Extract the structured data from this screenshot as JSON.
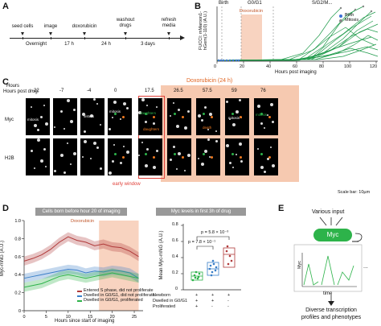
{
  "panels": {
    "A": "A",
    "B": "B",
    "C": "C",
    "D": "D",
    "E": "E"
  },
  "timeline": {
    "steps": [
      "seed cells",
      "image",
      "doxorubicin",
      "washout drugs",
      "refresh media"
    ],
    "intervals": [
      "Overnight",
      "17 h",
      "24 h",
      "3 days"
    ]
  },
  "panel_b": {
    "phases": [
      "Birth",
      "G0/G1",
      "S/G2/M..."
    ],
    "drug_label": "Doxorubicin",
    "ylabel": "FUCCI: mMaroon1-hGem(1-110) (A.U.)",
    "xlabel": "Hours post imaging",
    "xticks": [
      "0",
      "20",
      "40",
      "60",
      "80",
      "100",
      "120"
    ],
    "legend": [
      {
        "name": "Birth",
        "color": "#3b6fd6"
      },
      {
        "name": "Mitosis",
        "color": "#888888"
      }
    ]
  },
  "panel_c": {
    "hours_label": "Hours post drug:",
    "drug_title": "Doxorubicin (24 h)",
    "times": [
      "-22",
      "-7",
      "-4",
      "0",
      "17.5",
      "26.5",
      "57.5",
      "59",
      "76"
    ],
    "rows": [
      "Myc",
      "H2B"
    ],
    "early_window": "early window",
    "scale_bar": "Scale bar: 10µm",
    "annotations": {
      "mitosis": "mitosis",
      "sisters": "sisters",
      "daughters": "daughters",
      "death": "death"
    }
  },
  "panel_d": {
    "title": "Cells born before hour 20 of imaging",
    "drug_label": "Doxorubicin",
    "ylabel": "Myc-mNG (A.U.)",
    "xlabel": "Hours since start of imaging",
    "xticks": [
      "0",
      "5",
      "10",
      "15",
      "20",
      "25"
    ],
    "yticks": [
      "0",
      "0.2",
      "0.4",
      "0.6",
      "0.8",
      "1.0"
    ],
    "legend": [
      {
        "name": "Entered S phase, did not proliferate",
        "color": "#b03a3a"
      },
      {
        "name": "Dwelled in G0/G1, did not proliferate",
        "color": "#3a7fc8"
      },
      {
        "name": "Dwelled in G0/G1, proliferated",
        "color": "#2db34a"
      }
    ],
    "box_title": "Myc levels in first 3h of drug",
    "box_ylabel": "Mean Myc-mNG (A.U.)",
    "box_yticks": [
      "0",
      "0.2",
      "0.4",
      "0.6",
      "0.8"
    ],
    "pvals": [
      "p = 5.8 × 10⁻³",
      "p = 7.8 × 10⁻¹"
    ],
    "table_rows": [
      "Newborn",
      "Dwelled in G0/G1",
      "Proliferated"
    ],
    "table_vals": [
      [
        "+",
        "+",
        "+"
      ],
      [
        "+",
        "+",
        "-"
      ],
      [
        "+",
        "-",
        "-"
      ]
    ]
  },
  "panel_e": {
    "input": "Various input",
    "node": "Myc",
    "ylabel": "Myc",
    "xlabel": "time",
    "ellipsis": "...",
    "out1": "Diverse transcription",
    "out2": "profiles and phenotypes"
  },
  "chart_data": [
    {
      "type": "line",
      "title": "",
      "xlabel": "Hours since start of imaging",
      "ylabel": "Myc-mNG (A.U.)",
      "xlim": [
        0,
        27
      ],
      "ylim": [
        0,
        1.0
      ],
      "x": [
        0,
        2,
        4,
        6,
        8,
        10,
        12,
        14,
        16,
        18,
        20,
        22,
        24,
        26
      ],
      "series": [
        {
          "name": "Entered S phase, did not proliferate",
          "values": [
            0.55,
            0.58,
            0.62,
            0.68,
            0.76,
            0.82,
            0.78,
            0.76,
            0.72,
            0.74,
            0.71,
            0.7,
            0.66,
            0.6
          ]
        },
        {
          "name": "Dwelled in G0/G1, did not proliferate",
          "values": [
            0.36,
            0.38,
            0.4,
            0.42,
            0.44,
            0.46,
            0.45,
            0.42,
            0.44,
            0.43,
            0.45,
            0.44,
            0.42,
            0.36
          ]
        },
        {
          "name": "Dwelled in G0/G1, proliferated",
          "values": [
            0.26,
            0.28,
            0.3,
            0.34,
            0.38,
            0.4,
            0.38,
            0.36,
            0.38,
            0.4,
            0.42,
            0.4,
            0.38,
            0.36
          ]
        }
      ]
    }
  ]
}
